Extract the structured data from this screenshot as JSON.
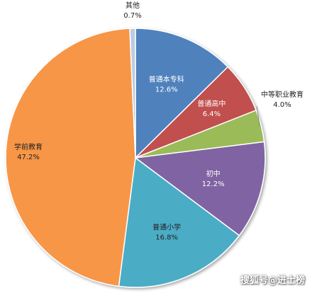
{
  "chart_data": {
    "type": "pie",
    "slices": [
      {
        "label": "普通本专科",
        "value": 12.6,
        "value_label": "12.6%",
        "color": "#4f81bd",
        "label_color": "#ffffff"
      },
      {
        "label": "普通高中",
        "value": 6.4,
        "value_label": "6.4%",
        "color": "#c0504d",
        "label_color": "#ffffff"
      },
      {
        "label": "中等职业教育",
        "value": 4.0,
        "value_label": "4.0%",
        "color": "#9bbb59",
        "label_color": "#222222"
      },
      {
        "label": "初中",
        "value": 12.2,
        "value_label": "12.2%",
        "color": "#8064a2",
        "label_color": "#ffffff"
      },
      {
        "label": "普通小学",
        "value": 16.8,
        "value_label": "16.8%",
        "color": "#4bacc6",
        "label_color": "#222222"
      },
      {
        "label": "学前教育",
        "value": 47.2,
        "value_label": "47.2%",
        "color": "#f79646",
        "label_color": "#222222"
      },
      {
        "label": "其他",
        "value": 0.7,
        "value_label": "0.7%",
        "color": "#b9cde5",
        "label_color": "#222222"
      }
    ],
    "start": "12 o'clock",
    "direction": "clockwise"
  },
  "watermark": "搜狐号@进士榜"
}
